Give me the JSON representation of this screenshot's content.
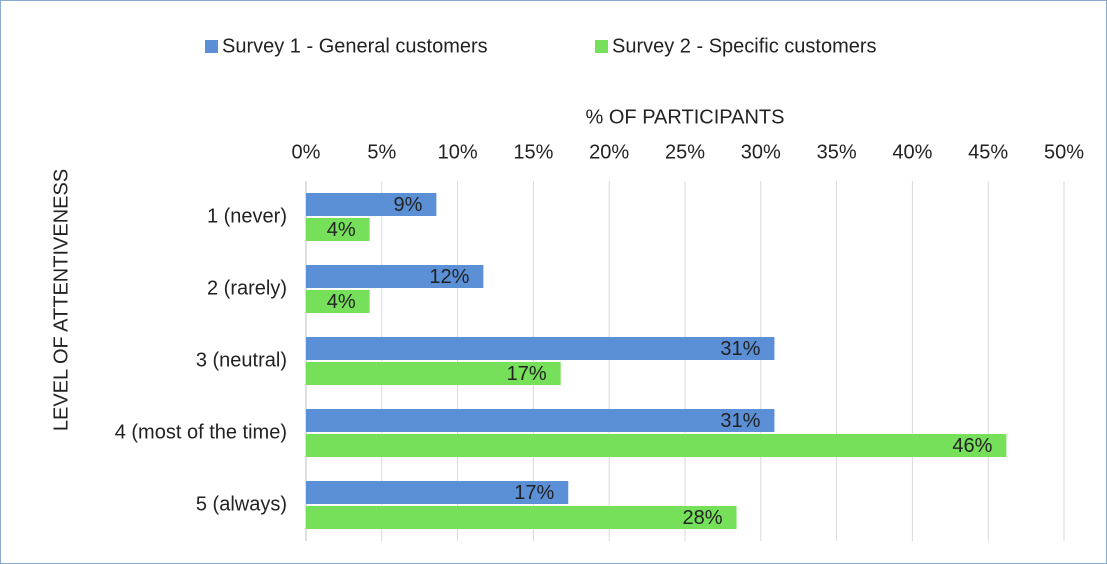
{
  "chart_data": {
    "type": "hbar",
    "x_label": "% OF PARTICIPANTS",
    "y_label": "LEVEL OF ATTENTIVENESS",
    "categories": [
      "1 (never)",
      "2 (rarely)",
      "3 (neutral)",
      "4 (most of the time)",
      "5 (always)"
    ],
    "series": [
      {
        "name": "Survey 1 - General customers",
        "color": "#5b8fd6",
        "values": [
          8.6,
          11.7,
          30.9,
          30.9,
          17.3
        ],
        "value_labels": [
          "9%",
          "12%",
          "31%",
          "31%",
          "17%"
        ]
      },
      {
        "name": "Survey 2 - Specific customers",
        "color": "#77e05a",
        "values": [
          4.2,
          4.2,
          16.8,
          46.2,
          28.4
        ],
        "value_labels": [
          "4%",
          "4%",
          "17%",
          "46%",
          "28%"
        ]
      }
    ],
    "xlim": [
      0,
      50
    ],
    "xticks": [
      {
        "value": 0,
        "label": "0%"
      },
      {
        "value": 5,
        "label": "5%"
      },
      {
        "value": 10,
        "label": "10%"
      },
      {
        "value": 15,
        "label": "15%"
      },
      {
        "value": 20,
        "label": "20%"
      },
      {
        "value": 25,
        "label": "25%"
      },
      {
        "value": 30,
        "label": "30%"
      },
      {
        "value": 35,
        "label": "35%"
      },
      {
        "value": 40,
        "label": "40%"
      },
      {
        "value": 45,
        "label": "45%"
      },
      {
        "value": 50,
        "label": "50%"
      }
    ],
    "grid": true,
    "legend": "top"
  }
}
